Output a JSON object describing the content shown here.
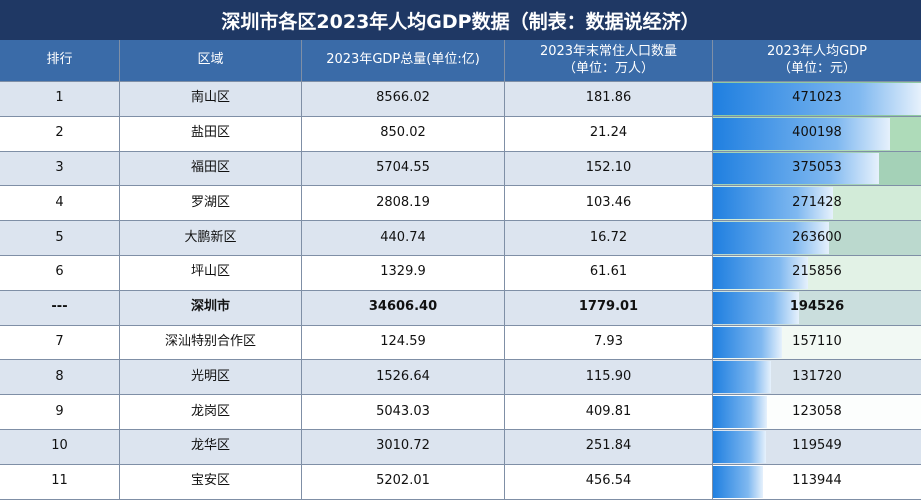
{
  "title": "深圳市各区2023年人均GDP数据（制表：数据说经济）",
  "table": {
    "header": [
      [
        "排行"
      ],
      [
        "区域"
      ],
      [
        "2023年GDP总量(单位:亿)"
      ],
      [
        "2023年末常住人口数量",
        "（单位：万人）"
      ],
      [
        "2023年人均GDP",
        "（单位：元）"
      ]
    ],
    "rows": [
      [
        "1",
        "南山区",
        "8566.02",
        "181.86",
        471023
      ],
      [
        "2",
        "盐田区",
        "850.02",
        "21.24",
        400198
      ],
      [
        "3",
        "福田区",
        "5704.55",
        "152.10",
        375053
      ],
      [
        "4",
        "罗湖区",
        "2808.19",
        "103.46",
        271428
      ],
      [
        "5",
        "大鹏新区",
        "440.74",
        "16.72",
        263600
      ],
      [
        "6",
        "坪山区",
        "1329.9",
        "61.61",
        215856
      ],
      [
        "---",
        "深圳市",
        "34606.40",
        "1779.01",
        194526
      ],
      [
        "7",
        "深汕特别合作区",
        "124.59",
        "7.93",
        157110
      ],
      [
        "8",
        "光明区",
        "1526.64",
        "115.90",
        131720
      ],
      [
        "9",
        "龙岗区",
        "5043.03",
        "409.81",
        123058
      ],
      [
        "10",
        "龙华区",
        "3010.72",
        "251.84",
        119549
      ],
      [
        "11",
        "宝安区",
        "5202.01",
        "456.54",
        113944
      ]
    ],
    "highlight_row": 6
  }
}
